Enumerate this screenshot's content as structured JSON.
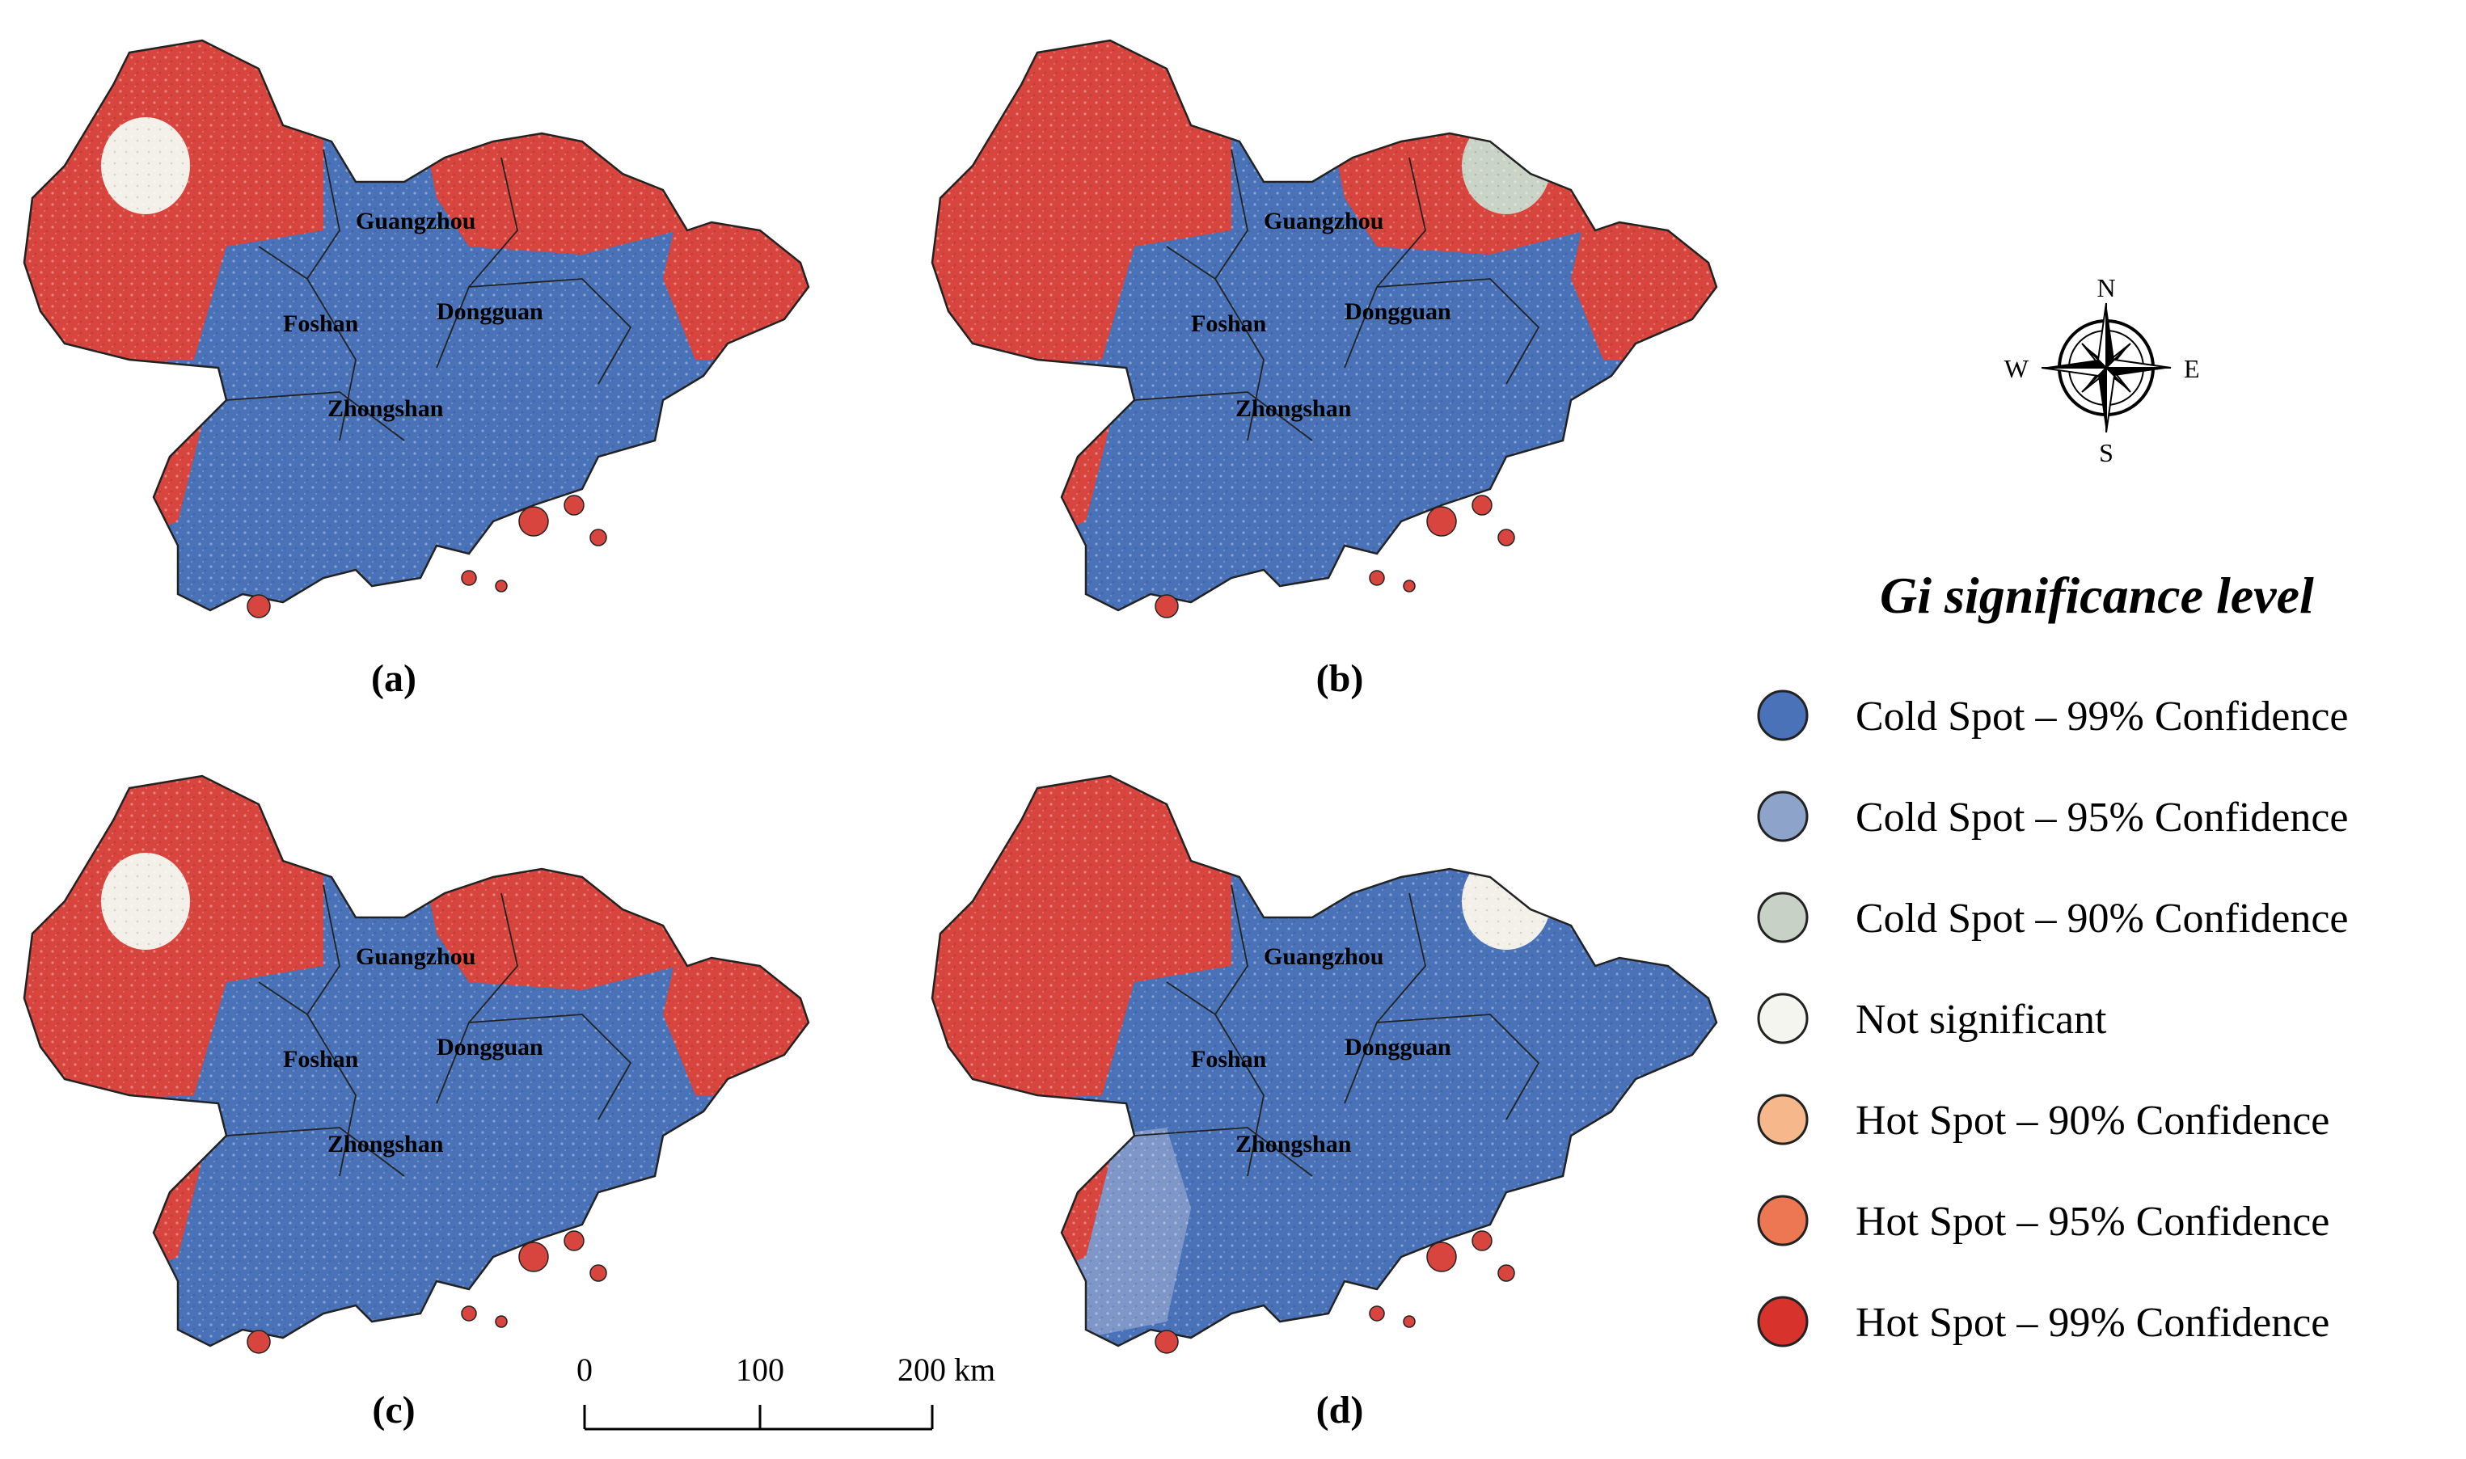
{
  "panels": [
    {
      "label": "(a)",
      "north": "#d8453e",
      "west": "#d8453e",
      "east": "#d8453e",
      "center": "#4a72b8",
      "south": "#4a72b8",
      "blob": "#f3f0ea"
    },
    {
      "label": "(b)",
      "north": "#d8453e",
      "west": "#d8453e",
      "east": "#d8453e",
      "center": "#4a72b8",
      "south": "#4a72b8",
      "blob": "#c9d3c6"
    },
    {
      "label": "(c)",
      "north": "#d8453e",
      "west": "#d8453e",
      "east": "#d8453e",
      "center": "#4a72b8",
      "south": "#4a72b8",
      "blob": "#f3f0ea"
    },
    {
      "label": "(d)",
      "north": "#4a72b8",
      "west": "#d8453e",
      "east": "#4a72b8",
      "center": "#4a72b8",
      "south": "#7f97c8",
      "blob": "#f3f0ea"
    }
  ],
  "city_labels": {
    "guangzhou": "Guangzhou",
    "foshan": "Foshan",
    "dongguan": "Dongguan",
    "zhongshan": "Zhongshan"
  },
  "compass": {
    "n": "N",
    "s": "S",
    "e": "E",
    "w": "W"
  },
  "legend": {
    "title": "Gi significance level",
    "items": [
      {
        "label": "Cold Spot – 99% Confidence",
        "color": "#4a72b8"
      },
      {
        "label": "Cold Spot – 95% Confidence",
        "color": "#8ea3c9"
      },
      {
        "label": "Cold Spot – 90% Confidence",
        "color": "#c8d1c6"
      },
      {
        "label": "Not significant",
        "color": "#f5f5f0"
      },
      {
        "label": "Hot Spot – 90% Confidence",
        "color": "#f6b88b"
      },
      {
        "label": "Hot Spot – 95% Confidence",
        "color": "#ec7752"
      },
      {
        "label": "Hot Spot – 99% Confidence",
        "color": "#d8322d"
      }
    ]
  },
  "scale_bar": {
    "tick_0": "0",
    "tick_1": "100",
    "tick_2": "200 km"
  }
}
